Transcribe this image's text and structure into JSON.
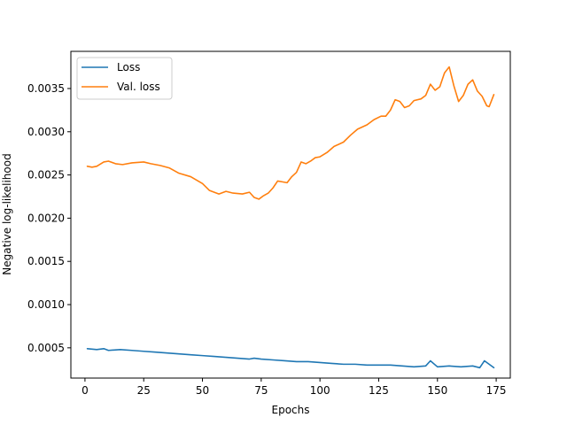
{
  "chart_data": {
    "type": "line",
    "title": "",
    "xlabel": "Epochs",
    "ylabel": "Negative log-likelihood",
    "xlim": [
      -6,
      181
    ],
    "ylim": [
      0.00015,
      0.00393
    ],
    "xticks": [
      0,
      25,
      50,
      75,
      100,
      125,
      150,
      175
    ],
    "yticks": [
      0.0005,
      0.001,
      0.0015,
      0.002,
      0.0025,
      0.003,
      0.0035
    ],
    "ytick_format": 4,
    "grid": false,
    "legend": "top-left",
    "series": [
      {
        "name": "Loss",
        "color": "#1f77b4",
        "x": [
          1,
          5,
          8,
          10,
          15,
          20,
          25,
          30,
          35,
          40,
          45,
          50,
          55,
          60,
          65,
          70,
          72,
          75,
          80,
          85,
          90,
          95,
          100,
          105,
          110,
          115,
          120,
          125,
          130,
          135,
          140,
          145,
          147,
          150,
          155,
          160,
          165,
          168,
          170,
          174
        ],
        "y": [
          0.00049,
          0.00048,
          0.00049,
          0.00047,
          0.00048,
          0.00047,
          0.00046,
          0.00045,
          0.00044,
          0.00043,
          0.00042,
          0.00041,
          0.0004,
          0.00039,
          0.00038,
          0.00037,
          0.00038,
          0.00037,
          0.00036,
          0.00035,
          0.00034,
          0.00034,
          0.00033,
          0.00032,
          0.00031,
          0.00031,
          0.0003,
          0.0003,
          0.0003,
          0.00029,
          0.00028,
          0.00029,
          0.00035,
          0.00028,
          0.00029,
          0.00028,
          0.00029,
          0.00027,
          0.00035,
          0.00027
        ]
      },
      {
        "name": "Val. loss",
        "color": "#ff7f0e",
        "x": [
          1,
          3,
          5,
          8,
          10,
          13,
          16,
          20,
          25,
          28,
          32,
          36,
          40,
          45,
          50,
          53,
          57,
          60,
          63,
          67,
          70,
          72,
          74,
          76,
          78,
          80,
          82,
          84,
          86,
          88,
          90,
          92,
          94,
          96,
          98,
          100,
          103,
          106,
          110,
          113,
          116,
          120,
          123,
          126,
          128,
          130,
          132,
          134,
          136,
          138,
          140,
          143,
          145,
          147,
          149,
          151,
          153,
          155,
          157,
          159,
          161,
          163,
          165,
          167,
          169,
          171,
          172,
          174
        ],
        "y": [
          0.0026,
          0.00259,
          0.0026,
          0.00265,
          0.00266,
          0.00263,
          0.00262,
          0.00264,
          0.00265,
          0.00263,
          0.00261,
          0.00258,
          0.00252,
          0.00248,
          0.0024,
          0.00232,
          0.00228,
          0.00231,
          0.00229,
          0.00228,
          0.0023,
          0.00224,
          0.00222,
          0.00226,
          0.00229,
          0.00235,
          0.00243,
          0.00242,
          0.00241,
          0.00248,
          0.00253,
          0.00265,
          0.00263,
          0.00266,
          0.0027,
          0.00271,
          0.00276,
          0.00283,
          0.00288,
          0.00296,
          0.00303,
          0.00308,
          0.00314,
          0.00318,
          0.00318,
          0.00325,
          0.00337,
          0.00335,
          0.00328,
          0.0033,
          0.00336,
          0.00338,
          0.00342,
          0.00355,
          0.00348,
          0.00352,
          0.00368,
          0.00375,
          0.00353,
          0.00335,
          0.00342,
          0.00355,
          0.0036,
          0.00347,
          0.00341,
          0.0033,
          0.00329,
          0.00343
        ]
      }
    ]
  }
}
